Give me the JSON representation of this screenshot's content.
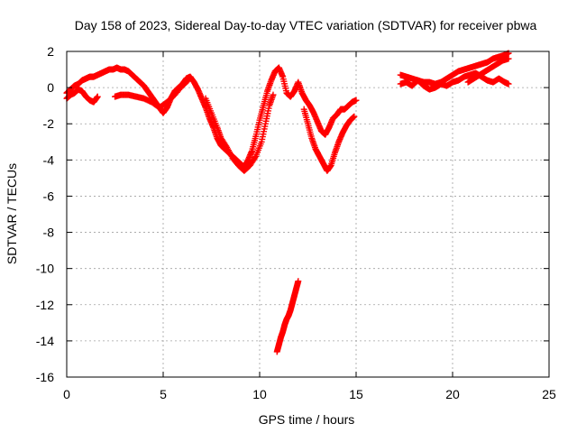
{
  "chart_data": {
    "type": "scatter",
    "title": "Day 158 of 2023, Sidereal Day-to-day VTEC variation (SDTVAR) for receiver pbwa",
    "xlabel": "GPS time / hours",
    "ylabel": "SDTVAR / TECUs",
    "xlim": [
      0,
      25
    ],
    "ylim": [
      -16,
      2
    ],
    "xticks": [
      0,
      5,
      10,
      15,
      20,
      25
    ],
    "yticks": [
      -16,
      -14,
      -12,
      -10,
      -8,
      -6,
      -4,
      -2,
      0,
      2
    ],
    "grid": true,
    "marker": "+",
    "series_color": "#ff0000",
    "series": [
      {
        "name": "SDTVAR",
        "segments": [
          [
            [
              0.0,
              -0.3
            ],
            [
              0.2,
              -0.1
            ],
            [
              0.4,
              0.1
            ],
            [
              0.6,
              0.2
            ],
            [
              0.8,
              0.4
            ],
            [
              1.0,
              0.5
            ],
            [
              1.2,
              0.6
            ],
            [
              1.4,
              0.6
            ],
            [
              1.6,
              0.7
            ],
            [
              1.8,
              0.8
            ],
            [
              2.0,
              0.9
            ],
            [
              2.2,
              1.0
            ],
            [
              2.4,
              1.0
            ],
            [
              2.6,
              1.1
            ],
            [
              2.8,
              1.0
            ],
            [
              3.0,
              1.0
            ],
            [
              3.2,
              0.9
            ],
            [
              3.4,
              0.7
            ],
            [
              3.6,
              0.5
            ],
            [
              3.8,
              0.3
            ],
            [
              4.0,
              0.1
            ],
            [
              4.2,
              -0.2
            ],
            [
              4.4,
              -0.5
            ],
            [
              4.6,
              -0.8
            ],
            [
              4.8,
              -1.1
            ],
            [
              5.0,
              -1.4
            ],
            [
              5.2,
              -1.1
            ],
            [
              5.4,
              -0.6
            ],
            [
              5.6,
              -0.2
            ],
            [
              5.8,
              0.0
            ],
            [
              6.0,
              0.2
            ],
            [
              6.2,
              0.5
            ],
            [
              6.4,
              0.6
            ],
            [
              6.6,
              0.3
            ],
            [
              6.8,
              -0.1
            ],
            [
              7.0,
              -0.6
            ],
            [
              7.2,
              -1.1
            ],
            [
              7.4,
              -1.7
            ],
            [
              7.6,
              -2.2
            ],
            [
              7.8,
              -2.8
            ],
            [
              8.0,
              -3.2
            ],
            [
              8.2,
              -3.4
            ],
            [
              8.4,
              -3.6
            ],
            [
              8.6,
              -3.8
            ],
            [
              8.8,
              -4.0
            ],
            [
              9.0,
              -4.2
            ],
            [
              9.2,
              -4.4
            ],
            [
              9.4,
              -4.0
            ],
            [
              9.6,
              -3.5
            ],
            [
              9.8,
              -2.7
            ],
            [
              10.0,
              -1.8
            ],
            [
              10.2,
              -1.0
            ],
            [
              10.4,
              -0.2
            ],
            [
              10.6,
              0.4
            ],
            [
              10.8,
              0.9
            ],
            [
              11.0,
              1.1
            ],
            [
              11.2,
              0.6
            ],
            [
              11.4,
              -0.3
            ],
            [
              11.6,
              -0.5
            ],
            [
              11.8,
              -0.2
            ],
            [
              12.0,
              0.3
            ],
            [
              12.2,
              -0.3
            ],
            [
              12.4,
              -0.7
            ],
            [
              12.6,
              -1.0
            ],
            [
              12.8,
              -1.4
            ],
            [
              13.0,
              -1.9
            ],
            [
              13.2,
              -2.4
            ],
            [
              13.4,
              -2.6
            ],
            [
              13.6,
              -2.2
            ],
            [
              13.8,
              -1.7
            ],
            [
              14.0,
              -1.5
            ],
            [
              14.2,
              -1.2
            ],
            [
              14.4,
              -1.2
            ],
            [
              14.6,
              -1.0
            ],
            [
              14.8,
              -0.8
            ],
            [
              15.0,
              -0.7
            ]
          ],
          [
            [
              0.0,
              -0.6
            ],
            [
              0.2,
              -0.4
            ],
            [
              0.4,
              -0.3
            ],
            [
              0.6,
              -0.1
            ],
            [
              0.8,
              -0.2
            ],
            [
              1.0,
              -0.5
            ],
            [
              1.2,
              -0.7
            ],
            [
              1.4,
              -0.8
            ],
            [
              1.6,
              -0.5
            ]
          ],
          [
            [
              2.5,
              -0.5
            ],
            [
              2.8,
              -0.4
            ],
            [
              3.2,
              -0.4
            ],
            [
              3.6,
              -0.5
            ],
            [
              4.0,
              -0.6
            ],
            [
              4.4,
              -0.8
            ],
            [
              4.8,
              -1.1
            ],
            [
              5.2,
              -0.8
            ],
            [
              5.6,
              -0.4
            ],
            [
              6.0,
              0.1
            ],
            [
              6.3,
              0.4
            ]
          ],
          [
            [
              7.2,
              -0.6
            ],
            [
              7.5,
              -1.4
            ],
            [
              7.8,
              -2.2
            ],
            [
              8.0,
              -2.8
            ],
            [
              8.3,
              -3.3
            ],
            [
              8.6,
              -3.9
            ],
            [
              8.9,
              -4.3
            ],
            [
              9.2,
              -4.6
            ],
            [
              9.5,
              -4.3
            ],
            [
              9.8,
              -3.8
            ],
            [
              10.1,
              -3.0
            ],
            [
              10.3,
              -2.0
            ],
            [
              10.5,
              -1.0
            ],
            [
              10.7,
              -0.4
            ]
          ],
          [
            [
              12.3,
              -1.2
            ],
            [
              12.5,
              -2.0
            ],
            [
              12.7,
              -2.8
            ],
            [
              12.9,
              -3.4
            ],
            [
              13.1,
              -3.8
            ],
            [
              13.3,
              -4.2
            ],
            [
              13.5,
              -4.6
            ],
            [
              13.7,
              -4.3
            ],
            [
              13.9,
              -3.6
            ],
            [
              14.1,
              -3.0
            ],
            [
              14.3,
              -2.5
            ],
            [
              14.5,
              -2.1
            ],
            [
              14.7,
              -1.8
            ],
            [
              14.9,
              -1.6
            ]
          ],
          [
            [
              10.9,
              -14.6
            ],
            [
              11.0,
              -14.2
            ],
            [
              11.1,
              -13.8
            ],
            [
              11.2,
              -13.5
            ],
            [
              11.3,
              -13.1
            ],
            [
              11.4,
              -12.8
            ],
            [
              11.5,
              -12.6
            ],
            [
              11.6,
              -12.3
            ],
            [
              11.7,
              -11.9
            ],
            [
              11.8,
              -11.5
            ],
            [
              11.9,
              -11.1
            ],
            [
              12.0,
              -10.7
            ]
          ],
          [
            [
              17.3,
              0.7
            ],
            [
              17.6,
              0.6
            ],
            [
              17.9,
              0.5
            ],
            [
              18.2,
              0.4
            ],
            [
              18.5,
              0.3
            ],
            [
              18.8,
              0.3
            ],
            [
              19.1,
              0.2
            ],
            [
              19.4,
              0.3
            ],
            [
              19.7,
              0.5
            ],
            [
              20.0,
              0.7
            ],
            [
              20.3,
              0.9
            ],
            [
              20.6,
              1.0
            ],
            [
              20.9,
              1.1
            ],
            [
              21.2,
              1.2
            ],
            [
              21.5,
              1.3
            ],
            [
              21.8,
              1.4
            ],
            [
              22.1,
              1.6
            ],
            [
              22.4,
              1.7
            ],
            [
              22.7,
              1.8
            ],
            [
              22.9,
              1.9
            ]
          ],
          [
            [
              17.3,
              0.2
            ],
            [
              17.6,
              0.3
            ],
            [
              17.9,
              0.1
            ],
            [
              18.2,
              0.4
            ],
            [
              18.5,
              0.1
            ],
            [
              18.8,
              -0.1
            ],
            [
              19.1,
              0.0
            ],
            [
              19.4,
              0.2
            ],
            [
              19.7,
              0.1
            ],
            [
              20.0,
              0.3
            ],
            [
              20.3,
              0.4
            ],
            [
              20.6,
              0.6
            ],
            [
              20.9,
              0.7
            ],
            [
              21.2,
              0.8
            ],
            [
              21.5,
              0.6
            ],
            [
              21.8,
              0.4
            ],
            [
              22.1,
              0.3
            ],
            [
              22.4,
              0.5
            ],
            [
              22.7,
              0.3
            ],
            [
              22.9,
              0.2
            ]
          ],
          [
            [
              20.8,
              0.3
            ],
            [
              21.1,
              0.5
            ],
            [
              21.4,
              0.7
            ],
            [
              21.7,
              0.9
            ],
            [
              22.0,
              1.1
            ],
            [
              22.3,
              1.3
            ],
            [
              22.6,
              1.5
            ],
            [
              22.9,
              1.6
            ]
          ]
        ]
      }
    ]
  }
}
